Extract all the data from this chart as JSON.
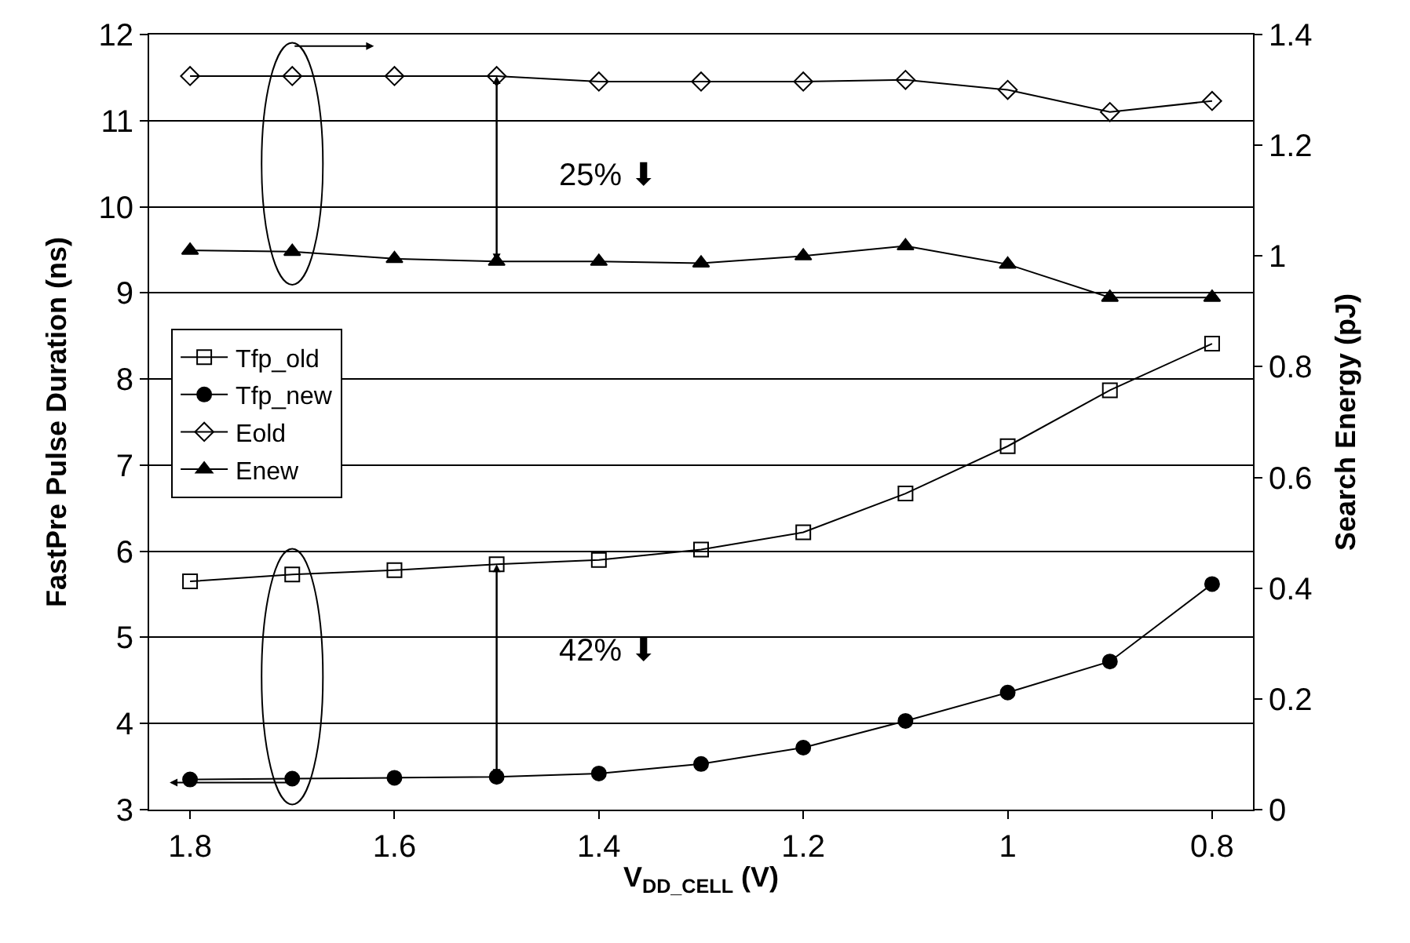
{
  "chart_data": {
    "type": "line",
    "xlabel": "V$_{DD_CELL}$ (V)",
    "ylabel": "FastPre Pulse Duration (ns)",
    "y2label": "Search Energy (pJ)",
    "x": [
      1.8,
      1.7,
      1.6,
      1.5,
      1.4,
      1.3,
      1.2,
      1.1,
      1.0,
      0.9,
      0.8
    ],
    "series": [
      {
        "name": "Tfp_old",
        "color": "#000000",
        "marker": "square-open",
        "values": [
          5.65,
          5.73,
          5.78,
          5.85,
          5.9,
          6.02,
          6.22,
          6.67,
          7.22,
          7.87,
          8.41
        ]
      },
      {
        "name": "Tfp_new",
        "color": "#000000",
        "marker": "circle",
        "values": [
          3.35,
          3.36,
          3.37,
          3.38,
          3.42,
          3.53,
          3.72,
          4.03,
          4.36,
          4.72,
          5.62
        ]
      },
      {
        "name": "Eold",
        "color": "#000000",
        "marker": "diamond-open",
        "axis": "y2",
        "values": [
          1.325,
          1.325,
          1.325,
          1.325,
          1.315,
          1.315,
          1.315,
          1.318,
          1.3,
          1.26,
          1.28
        ]
      },
      {
        "name": "Enew",
        "color": "#000000",
        "marker": "triangle-up",
        "axis": "y2",
        "values": [
          1.01,
          1.008,
          0.995,
          0.99,
          0.99,
          0.987,
          1.0,
          1.018,
          0.985,
          0.925,
          0.925
        ]
      }
    ],
    "xlim": [
      1.84,
      0.76
    ],
    "xticks": [
      1.8,
      1.6,
      1.4,
      1.2,
      {
        "value": 1.0,
        "label": "1"
      },
      0.8
    ],
    "ylim": [
      3,
      12
    ],
    "yticks": [
      3,
      4,
      5,
      6,
      7,
      8,
      9,
      10,
      11,
      12
    ],
    "y2lim": [
      0,
      1.4
    ],
    "y2ticks": [
      0,
      0.2,
      0.4,
      0.6,
      0.8,
      1,
      1.2,
      1.4
    ],
    "grid": "y",
    "legend": "left",
    "line_style": "solid",
    "annotations": [
      "25% ⬇",
      "42% ⬇"
    ]
  }
}
